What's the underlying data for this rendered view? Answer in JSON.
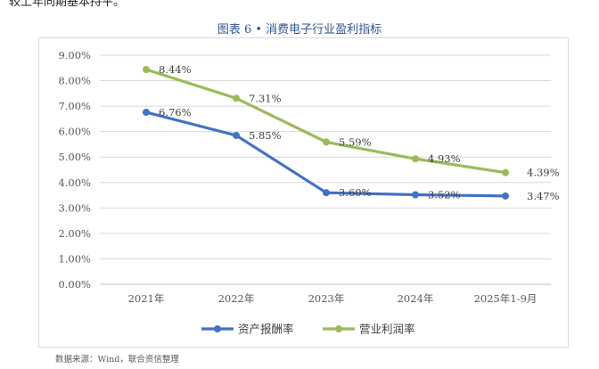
{
  "header": {
    "top_text": "较上年同期基本持平。",
    "figure_title": "图表 6 • 消费电子行业盈利指标"
  },
  "source": "数据来源：Wind，联合资信整理",
  "chart_data": {
    "type": "line",
    "categories": [
      "2021年",
      "2022年",
      "2023年",
      "2024年",
      "2025年1-9月"
    ],
    "series": [
      {
        "name": "资产报酬率",
        "values": [
          6.76,
          5.85,
          3.6,
          3.52,
          3.47
        ],
        "labels": [
          "6.76%",
          "5.85%",
          "3.60%",
          "3.52%",
          "3.47%"
        ],
        "color": "#4472c4"
      },
      {
        "name": "营业利润率",
        "values": [
          8.44,
          7.31,
          5.59,
          4.93,
          4.39
        ],
        "labels": [
          "8.44%",
          "7.31%",
          "5.59%",
          "4.93%",
          "4.39%"
        ],
        "color": "#9bbb59"
      }
    ],
    "y_ticks": [
      "0.00%",
      "1.00%",
      "2.00%",
      "3.00%",
      "4.00%",
      "5.00%",
      "6.00%",
      "7.00%",
      "8.00%",
      "9.00%"
    ],
    "ylim": [
      0,
      9
    ],
    "grid": true,
    "legend": "bottom"
  }
}
